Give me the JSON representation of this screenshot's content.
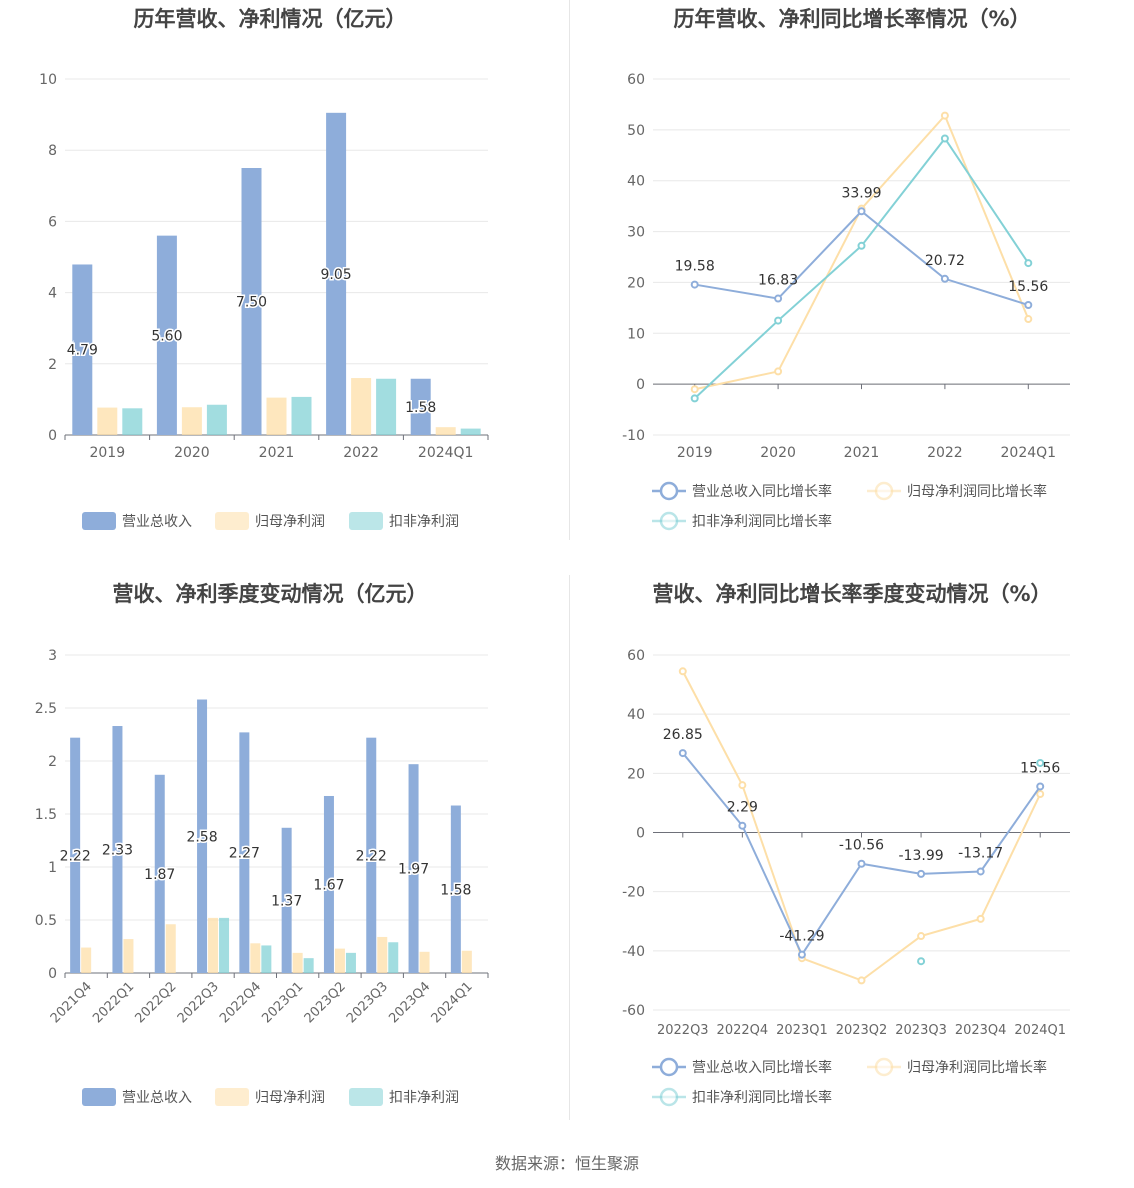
{
  "colors": {
    "revenue": "#8eadda",
    "net_profit": "#fddfa8",
    "deducted_profit": "#83d1d6",
    "rev_line": "#8eadda",
    "np_line": "#fddfa8",
    "dp_line": "#83d1d6"
  },
  "chart_data": [
    {
      "type": "bar",
      "title": "历年营收、净利情况（亿元）",
      "categories": [
        "2019",
        "2020",
        "2021",
        "2022",
        "2024Q1"
      ],
      "ylim": [
        0,
        10
      ],
      "yticks": [
        "0",
        "2",
        "4",
        "6",
        "8",
        "10"
      ],
      "series": [
        {
          "name": "营业总收入",
          "values": [
            4.79,
            5.6,
            7.5,
            9.05,
            1.58
          ],
          "labels": [
            "4.79",
            "5.60",
            "7.50",
            "9.05",
            "1.58"
          ]
        },
        {
          "name": "归母净利润",
          "values": [
            0.77,
            0.78,
            1.05,
            1.6,
            0.22
          ]
        },
        {
          "name": "扣非净利润",
          "values": [
            0.75,
            0.85,
            1.07,
            1.58,
            0.18
          ]
        }
      ],
      "legend": "bottom"
    },
    {
      "type": "line",
      "title": "历年营收、净利同比增长率情况（%）",
      "categories": [
        "2019",
        "2020",
        "2021",
        "2022",
        "2024Q1"
      ],
      "ylim": [
        -10,
        60
      ],
      "yticks": [
        "-10",
        "0",
        "10",
        "20",
        "30",
        "40",
        "50",
        "60"
      ],
      "series": [
        {
          "name": "营业总收入同比增长率",
          "values": [
            19.58,
            16.83,
            33.99,
            20.72,
            15.56
          ],
          "labels": [
            "19.58",
            "16.83",
            "33.99",
            "20.72",
            "15.56"
          ]
        },
        {
          "name": "归母净利润同比增长率",
          "values": [
            -1,
            2.5,
            34.5,
            52.8,
            12.8
          ]
        },
        {
          "name": "扣非净利润同比增长率",
          "values": [
            -2.8,
            12.5,
            27.2,
            48.3,
            23.8
          ]
        }
      ],
      "legend": "bottom"
    },
    {
      "type": "bar",
      "title": "营收、净利季度变动情况（亿元）",
      "categories": [
        "2021Q4",
        "2022Q1",
        "2022Q2",
        "2022Q3",
        "2022Q4",
        "2023Q1",
        "2023Q2",
        "2023Q3",
        "2023Q4",
        "2024Q1"
      ],
      "ylim": [
        0,
        3
      ],
      "yticks": [
        "0",
        "0.5",
        "1",
        "1.5",
        "2",
        "2.5",
        "3"
      ],
      "series": [
        {
          "name": "营业总收入",
          "values": [
            2.22,
            2.33,
            1.87,
            2.58,
            2.27,
            1.37,
            1.67,
            2.22,
            1.97,
            1.58
          ],
          "labels": [
            "2.22",
            "2.33",
            "1.87",
            "2.58",
            "2.27",
            "1.37",
            "1.67",
            "2.22",
            "1.97",
            "1.58"
          ]
        },
        {
          "name": "归母净利润",
          "values": [
            0.24,
            0.32,
            0.46,
            0.52,
            0.28,
            0.19,
            0.23,
            0.34,
            0.2,
            0.21
          ]
        },
        {
          "name": "扣非净利润",
          "values": [
            null,
            null,
            null,
            0.52,
            0.26,
            0.14,
            0.19,
            0.29,
            null,
            null
          ]
        }
      ],
      "legend": "bottom"
    },
    {
      "type": "line",
      "title": "营收、净利同比增长率季度变动情况（%）",
      "categories": [
        "2022Q3",
        "2022Q4",
        "2023Q1",
        "2023Q2",
        "2023Q3",
        "2023Q4",
        "2024Q1"
      ],
      "ylim": [
        -60,
        60
      ],
      "yticks": [
        "-60",
        "-40",
        "-20",
        "0",
        "20",
        "40",
        "60"
      ],
      "series": [
        {
          "name": "营业总收入同比增长率",
          "values": [
            26.85,
            2.29,
            -41.29,
            -10.56,
            -13.99,
            -13.17,
            15.56
          ],
          "labels": [
            "26.85",
            "2.29",
            "-41.29",
            "-10.56",
            "-13.99",
            "-13.17",
            "15.56"
          ]
        },
        {
          "name": "归母净利润同比增长率",
          "values": [
            54.5,
            16,
            -42.5,
            -50,
            -35,
            -29.2,
            13
          ]
        },
        {
          "name": "扣非净利润同比增长率",
          "values": [
            null,
            null,
            null,
            null,
            -43.5,
            null,
            23.5
          ]
        }
      ],
      "legend": "bottom"
    }
  ],
  "source": "数据来源：恒生聚源"
}
